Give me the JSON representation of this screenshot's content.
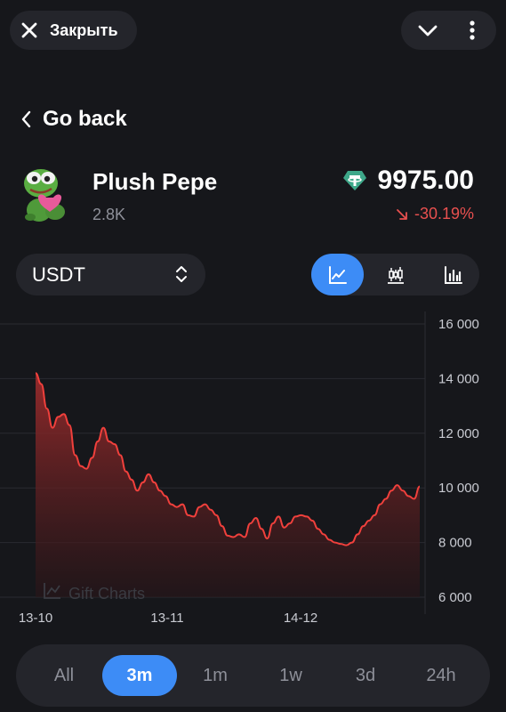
{
  "topbar": {
    "close_label": "Закрыть"
  },
  "nav": {
    "back_label": "Go back"
  },
  "gift": {
    "name": "Plush Pepe",
    "count": "2.8K"
  },
  "price": {
    "value": "9975.00",
    "change": "-30.19%"
  },
  "currency": {
    "selected": "USDT"
  },
  "view_modes": [
    "line-chart-icon",
    "candlestick-icon",
    "bar-chart-icon"
  ],
  "active_view": "line-chart-icon",
  "watermark": "Gift Charts",
  "periods": [
    "All",
    "3m",
    "1m",
    "1w",
    "3d",
    "24h"
  ],
  "active_period": "3m",
  "colors": {
    "accent": "#3d8cf6",
    "negative": "#e8504f",
    "line": "#f0403c"
  },
  "chart_data": {
    "type": "area",
    "x_tick_labels": [
      "13-10",
      "13-11",
      "14-12"
    ],
    "y_tick_labels": [
      "16 000",
      "14 000",
      "12 000",
      "10 000",
      "8 000",
      "6 000"
    ],
    "ylim": [
      6000,
      16000
    ],
    "grid": true,
    "values": [
      14200,
      13800,
      12900,
      12200,
      12600,
      12700,
      12300,
      11200,
      10800,
      10700,
      11100,
      11700,
      12200,
      11700,
      11600,
      11200,
      10600,
      10300,
      9900,
      10200,
      10500,
      10200,
      9900,
      9700,
      9400,
      9300,
      9400,
      9000,
      8950,
      9300,
      9400,
      9200,
      9000,
      8600,
      8250,
      8200,
      8300,
      8200,
      8700,
      8900,
      8500,
      8150,
      8700,
      8950,
      8550,
      8700,
      8950,
      9000,
      8950,
      8800,
      8500,
      8300,
      8100,
      8000,
      7950,
      7900,
      8000,
      8300,
      8600,
      8800,
      9000,
      9400,
      9600,
      9900,
      10100,
      9900,
      9700,
      9600,
      10050
    ]
  }
}
